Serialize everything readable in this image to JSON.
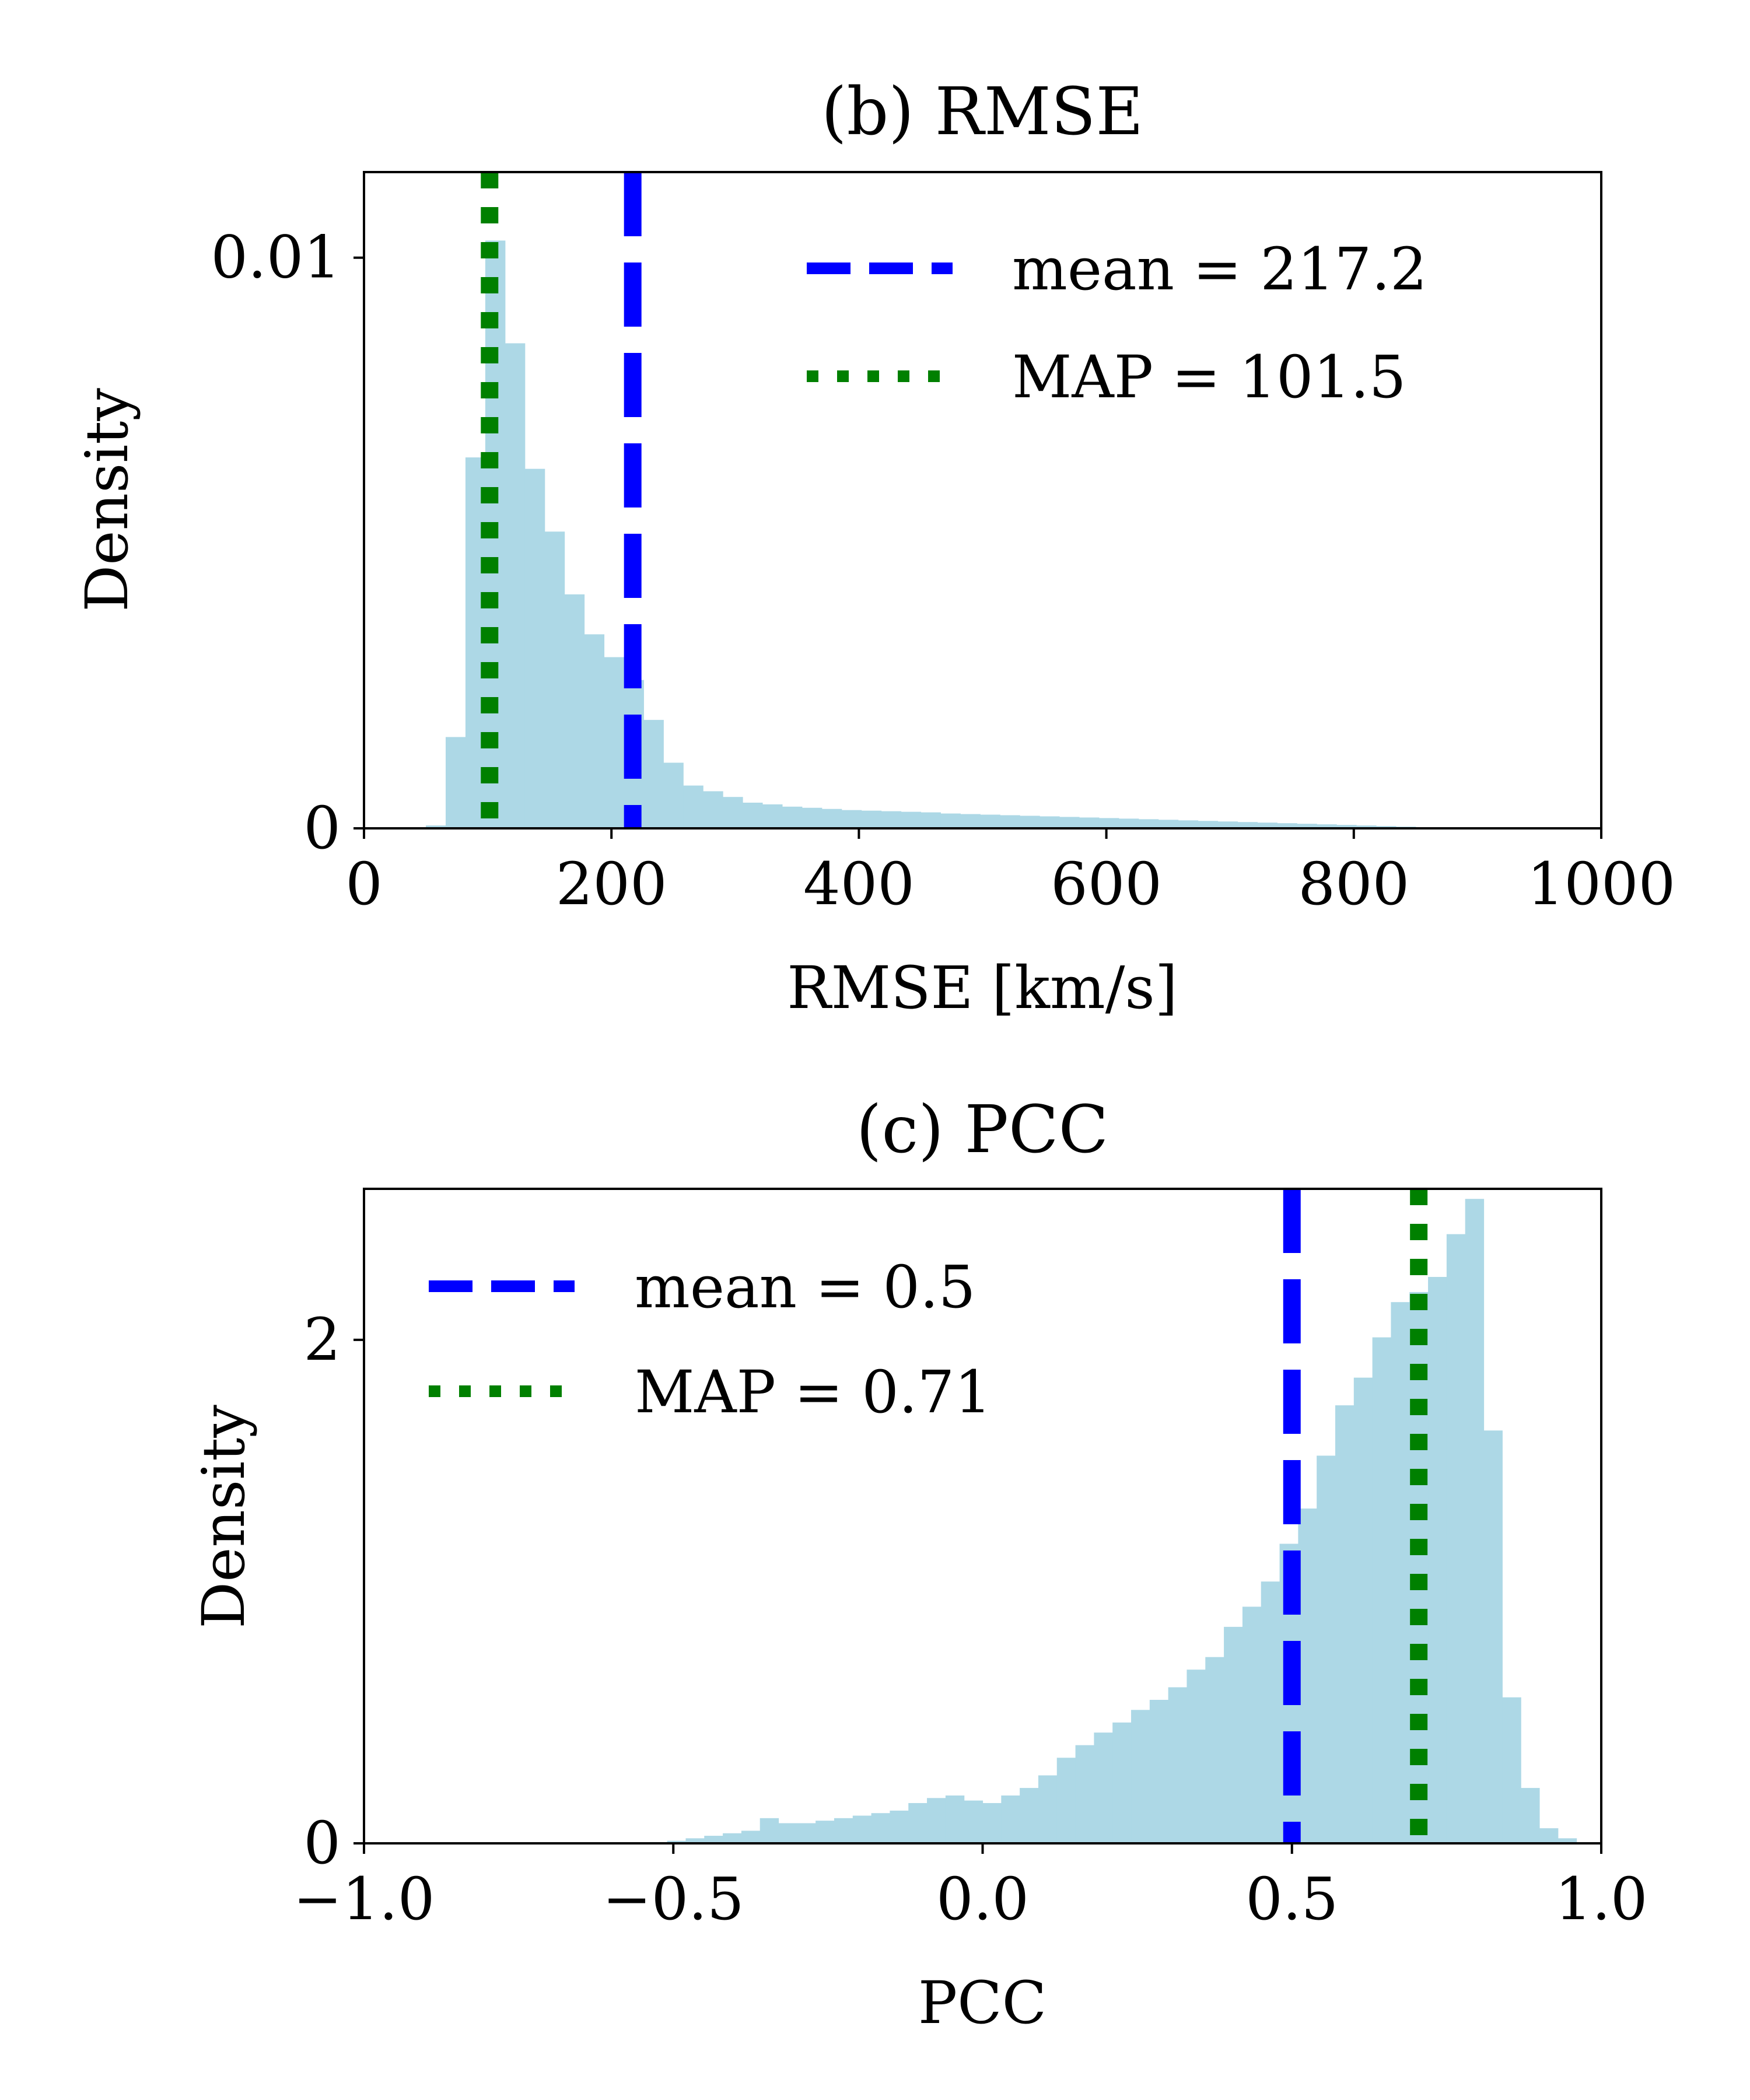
{
  "chart_data": [
    {
      "type": "histogram",
      "title": "(b) RMSE",
      "xlabel": "RMSE [km/s]",
      "ylabel": "Density",
      "xlim": [
        0,
        1000
      ],
      "ylim": [
        0,
        0.0115
      ],
      "xticks": [
        0,
        200,
        400,
        600,
        800,
        1000
      ],
      "xtick_labels": [
        "0",
        "200",
        "400",
        "600",
        "800",
        "1000"
      ],
      "yticks": [
        0,
        0.01
      ],
      "ytick_labels": [
        "0",
        "0.01"
      ],
      "bar_color": "#add8e6",
      "bins": {
        "x0": 50,
        "width": 16,
        "values": [
          5e-05,
          0.0016,
          0.0065,
          0.0103,
          0.0085,
          0.0063,
          0.0052,
          0.0041,
          0.0034,
          0.003,
          0.0026,
          0.0019,
          0.00115,
          0.00075,
          0.00065,
          0.00055,
          0.00045,
          0.00042,
          0.00038,
          0.00036,
          0.00034,
          0.00032,
          0.00031,
          0.0003,
          0.00029,
          0.00028,
          0.00026,
          0.00025,
          0.00024,
          0.00023,
          0.00022,
          0.00021,
          0.0002,
          0.00019,
          0.00018,
          0.00017,
          0.00016,
          0.00015,
          0.00014,
          0.00013,
          0.00012,
          0.00011,
          0.0001,
          9e-05,
          8e-05,
          7e-05,
          6e-05,
          5e-05,
          4e-05,
          3e-05,
          2e-05,
          1e-05,
          1e-05,
          1e-05,
          1e-05,
          1e-05,
          1e-05,
          1e-05,
          1e-05
        ]
      },
      "lines": [
        {
          "label": "mean = 217.2",
          "x": 217.2,
          "style": "dashed",
          "color": "#0000ff"
        },
        {
          "label": "MAP = 101.5",
          "x": 101.5,
          "style": "dotted",
          "color": "#008000"
        }
      ],
      "legend_position": "upper right"
    },
    {
      "type": "histogram",
      "title": "(c) PCC",
      "xlabel": "PCC",
      "ylabel": "Density",
      "xlim": [
        -1.0,
        1.0
      ],
      "ylim": [
        0,
        2.6
      ],
      "xticks": [
        -1.0,
        -0.5,
        0.0,
        0.5,
        1.0
      ],
      "xtick_labels": [
        "−1.0",
        "−0.5",
        "0.0",
        "0.5",
        "1.0"
      ],
      "yticks": [
        0,
        2
      ],
      "ytick_labels": [
        "0",
        "2"
      ],
      "bar_color": "#add8e6",
      "bins": {
        "x0": -0.54,
        "width": 0.03,
        "values": [
          0.005,
          0.01,
          0.02,
          0.03,
          0.04,
          0.05,
          0.1,
          0.08,
          0.08,
          0.09,
          0.1,
          0.11,
          0.12,
          0.13,
          0.16,
          0.18,
          0.19,
          0.17,
          0.16,
          0.19,
          0.22,
          0.27,
          0.34,
          0.39,
          0.44,
          0.48,
          0.53,
          0.57,
          0.62,
          0.69,
          0.74,
          0.86,
          0.94,
          1.04,
          1.19,
          1.33,
          1.54,
          1.74,
          1.85,
          2.01,
          2.15,
          2.19,
          2.25,
          2.42,
          2.56,
          1.64,
          0.58,
          0.22,
          0.06,
          0.02
        ]
      },
      "lines": [
        {
          "label": "mean = 0.5",
          "x": 0.5,
          "style": "dashed",
          "color": "#0000ff"
        },
        {
          "label": "MAP = 0.71",
          "x": 0.705,
          "style": "dotted",
          "color": "#008000"
        }
      ],
      "legend_position": "upper left"
    }
  ]
}
